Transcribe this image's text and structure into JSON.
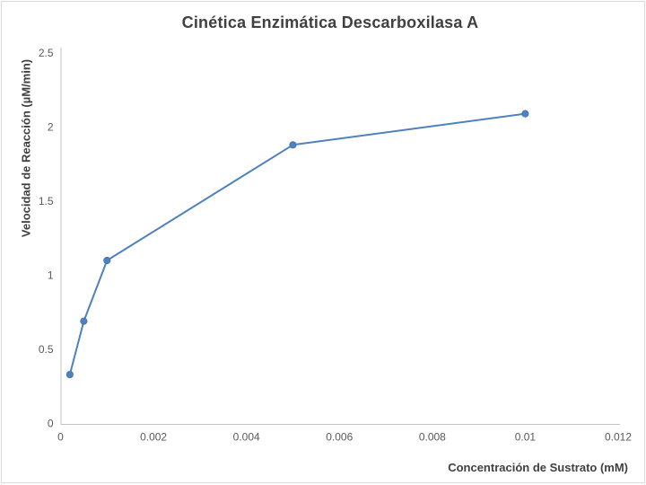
{
  "chart_data": {
    "type": "line",
    "title": "Cinética Enzimática Descarboxilasa A",
    "xlabel": "Concentración de Sustrato (mM)",
    "ylabel": "Velocidad de Reacción (µM/min)",
    "x": [
      0.0002,
      0.0005,
      0.001,
      0.005,
      0.01
    ],
    "y": [
      0.33,
      0.69,
      1.1,
      1.88,
      2.09
    ],
    "xlim": [
      0,
      0.012
    ],
    "ylim": [
      0,
      2.5
    ],
    "xticks": [
      0,
      0.002,
      0.004,
      0.006,
      0.008,
      0.01,
      0.012
    ],
    "yticks": [
      0,
      0.5,
      1,
      1.5,
      2,
      2.5
    ],
    "grid": false,
    "legend": false,
    "marker": "circle"
  },
  "colors": {
    "series": "#4F81BD",
    "marker_edge": "#4478B2",
    "axis_line": "#C3C3C3",
    "tick_text": "#595959",
    "title_text": "#404040",
    "slide_border": "#D9D9D9",
    "background": "#FFFFFF"
  }
}
